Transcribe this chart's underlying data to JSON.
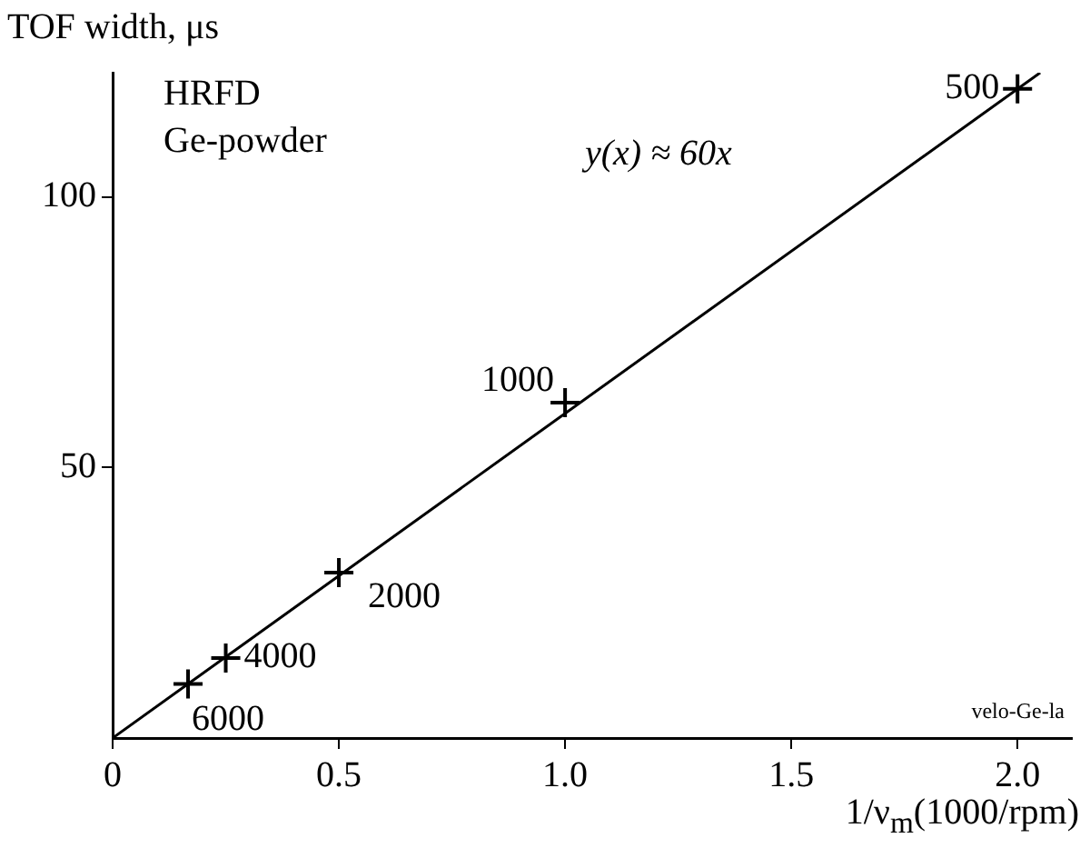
{
  "chart_data": {
    "type": "scatter",
    "xlabel": "1/ν$_{m}$(1000/rpm)",
    "ylabel": "TOF width, μs",
    "xlim": [
      0,
      2.12
    ],
    "ylim": [
      0,
      123
    ],
    "xticks": [
      0,
      0.5,
      {
        "value": 1,
        "label": "1.0"
      },
      1.5,
      {
        "value": 2,
        "label": "2.0"
      }
    ],
    "yticks": [
      50,
      100
    ],
    "series": [
      {
        "color": "#000000",
        "x": [
          0.1667,
          0.25,
          0.5,
          1.0,
          2.0
        ],
        "values": [
          10,
          14.8,
          30.6,
          62,
          120
        ],
        "marker": "cross"
      },
      {
        "type": "line",
        "color": "#000000",
        "x": [
          0,
          2.05
        ],
        "values": [
          0,
          123
        ],
        "marker": "none",
        "line_style": "solid"
      }
    ],
    "annotations": [
      "HRFD",
      "Ge-powder",
      "y(x) ≈ 60x",
      "velo-Ge-la",
      {
        "text": "6000",
        "x": 0.1667,
        "y": 10
      },
      {
        "text": "4000",
        "x": 0.25,
        "y": 14.8
      },
      {
        "text": "2000",
        "x": 0.5,
        "y": 30.6
      },
      {
        "text": "1000",
        "x": 1.0,
        "y": 62
      },
      {
        "text": "500",
        "x": 2.0,
        "y": 120
      }
    ],
    "grid": false,
    "legend": false
  }
}
